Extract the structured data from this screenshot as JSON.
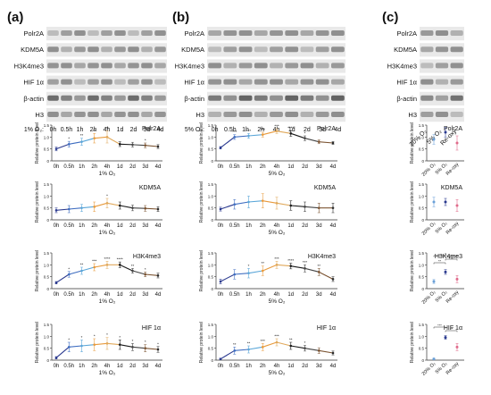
{
  "panels": [
    {
      "letter": "(a)",
      "blot_rows": [
        "Polr2A",
        "KDM5A",
        "H3K4me3",
        "HIF 1α",
        "β-actin",
        "H3"
      ],
      "condition_label": "1% O₂:",
      "lanes": [
        "0h",
        "0.5h",
        "1h",
        "2h",
        "4h",
        "1d",
        "2d",
        "3d",
        "4d"
      ]
    },
    {
      "letter": "(b)",
      "blot_rows": [
        "Polr2A",
        "KDM5A",
        "H3K4me3",
        "HIF 1α",
        "β-actin",
        "H3"
      ],
      "condition_label": "5% O₂:",
      "lanes": [
        "0h",
        "0.5h",
        "1h",
        "2h",
        "4h",
        "1d",
        "2d",
        "3d",
        "4d"
      ]
    },
    {
      "letter": "(c)",
      "blot_rows": [
        "Polr2A",
        "KDM5A",
        "H3K4me3",
        "HIF 1α",
        "β-actin",
        "H3"
      ],
      "condition_label": "",
      "lanes": [
        "20% O₂",
        "5% O₂",
        "Re-oxy"
      ]
    }
  ],
  "chart_data": [
    {
      "type": "line",
      "panel": "a",
      "title": "Polr2A",
      "ylabel": "Relative protein level",
      "xlabel": "1% O₂",
      "ylim": [
        0,
        1.5
      ],
      "yticks": [
        "0",
        "0.5",
        "1.0",
        "1.5"
      ],
      "categories": [
        "0h",
        "0.5h",
        "1h",
        "2h",
        "4h",
        "1d",
        "2d",
        "3d",
        "4d"
      ],
      "values": [
        0.5,
        0.7,
        0.8,
        0.95,
        1.0,
        0.7,
        0.68,
        0.65,
        0.6
      ],
      "errors": [
        0.08,
        0.12,
        0.15,
        0.2,
        0.25,
        0.1,
        0.1,
        0.1,
        0.08
      ],
      "sig": [
        "",
        "*",
        "**",
        "**",
        "**",
        "",
        "",
        "*",
        ""
      ]
    },
    {
      "type": "line",
      "panel": "a",
      "title": "KDM5A",
      "ylabel": "Relative protein level",
      "xlabel": "1% O₂",
      "ylim": [
        0,
        1.5
      ],
      "yticks": [
        "0",
        "0.5",
        "1.0",
        "1.5"
      ],
      "categories": [
        "0h",
        "0.5h",
        "1h",
        "2h",
        "4h",
        "1d",
        "2d",
        "3d",
        "4d"
      ],
      "values": [
        0.4,
        0.45,
        0.5,
        0.55,
        0.7,
        0.6,
        0.5,
        0.48,
        0.45
      ],
      "errors": [
        0.1,
        0.15,
        0.15,
        0.2,
        0.2,
        0.15,
        0.12,
        0.12,
        0.1
      ],
      "sig": [
        "",
        "",
        "",
        "",
        "*",
        "",
        "",
        "",
        ""
      ]
    },
    {
      "type": "line",
      "panel": "a",
      "title": "H3K4me3",
      "ylabel": "Relative protein level",
      "xlabel": "1% O₂",
      "ylim": [
        0,
        1.5
      ],
      "yticks": [
        "0",
        "0.5",
        "1.0",
        "1.5"
      ],
      "categories": [
        "0h",
        "0.5h",
        "1h",
        "2h",
        "4h",
        "1d",
        "2d",
        "3d",
        "4d"
      ],
      "values": [
        0.25,
        0.6,
        0.75,
        0.9,
        1.0,
        1.0,
        0.75,
        0.6,
        0.55
      ],
      "errors": [
        0.05,
        0.12,
        0.15,
        0.15,
        0.15,
        0.12,
        0.1,
        0.1,
        0.1
      ],
      "sig": [
        "",
        "*",
        "**",
        "***",
        "****",
        "****",
        "**",
        "*",
        ""
      ]
    },
    {
      "type": "line",
      "panel": "a",
      "title": "HIF 1α",
      "ylabel": "Relative protein level",
      "xlabel": "1% O₂",
      "ylim": [
        0,
        1.5
      ],
      "yticks": [
        "0",
        "0.5",
        "1.0",
        "1.5"
      ],
      "categories": [
        "0h",
        "0.5h",
        "1h",
        "2h",
        "4h",
        "1d",
        "2d",
        "3d",
        "4d"
      ],
      "values": [
        0.1,
        0.55,
        0.6,
        0.65,
        0.7,
        0.65,
        0.55,
        0.5,
        0.45
      ],
      "errors": [
        0.05,
        0.2,
        0.25,
        0.25,
        0.25,
        0.2,
        0.15,
        0.15,
        0.12
      ],
      "sig": [
        "",
        "*",
        "*",
        "*",
        "*",
        "*",
        "*",
        "*",
        "*"
      ]
    },
    {
      "type": "line",
      "panel": "b",
      "title": "Polr2A",
      "ylabel": "Relative protein level",
      "xlabel": "5% O₂",
      "ylim": [
        0,
        1.5
      ],
      "yticks": [
        "0",
        "0.5",
        "1.0",
        "1.5"
      ],
      "categories": [
        "0h",
        "0.5h",
        "1h",
        "2h",
        "4h",
        "1d",
        "2d",
        "3d",
        "4d"
      ],
      "values": [
        0.55,
        1.0,
        1.05,
        1.1,
        1.25,
        1.15,
        0.95,
        0.8,
        0.75
      ],
      "errors": [
        0.05,
        0.1,
        0.1,
        0.1,
        0.1,
        0.12,
        0.1,
        0.08,
        0.06
      ],
      "sig": [
        "",
        "***",
        "***",
        "***",
        "***",
        "****",
        "*",
        "",
        ""
      ]
    },
    {
      "type": "line",
      "panel": "b",
      "title": "KDM5A",
      "ylabel": "Relative protein level",
      "xlabel": "5% O₂",
      "ylim": [
        0,
        1.5
      ],
      "yticks": [
        "0",
        "0.5",
        "1.0",
        "1.5"
      ],
      "categories": [
        "0h",
        "0.5h",
        "1h",
        "2h",
        "4h",
        "1d",
        "2d",
        "3d",
        "4d"
      ],
      "values": [
        0.45,
        0.65,
        0.75,
        0.8,
        0.7,
        0.6,
        0.55,
        0.5,
        0.5
      ],
      "errors": [
        0.08,
        0.2,
        0.25,
        0.3,
        0.25,
        0.2,
        0.2,
        0.2,
        0.2
      ],
      "sig": [
        "",
        "",
        "",
        "",
        "",
        "",
        "",
        "",
        ""
      ]
    },
    {
      "type": "line",
      "panel": "b",
      "title": "H3K4me3",
      "ylabel": "Relative protein level",
      "xlabel": "5% O₂",
      "ylim": [
        0,
        1.5
      ],
      "yticks": [
        "0",
        "0.5",
        "1.0",
        "1.5"
      ],
      "categories": [
        "0h",
        "0.5h",
        "1h",
        "2h",
        "4h",
        "1d",
        "2d",
        "3d",
        "4d"
      ],
      "values": [
        0.3,
        0.6,
        0.65,
        0.75,
        1.0,
        0.95,
        0.85,
        0.7,
        0.4
      ],
      "errors": [
        0.1,
        0.2,
        0.2,
        0.2,
        0.15,
        0.12,
        0.15,
        0.15,
        0.1
      ],
      "sig": [
        "",
        "",
        "*",
        "**",
        "***",
        "****",
        "***",
        "**",
        ""
      ]
    },
    {
      "type": "line",
      "panel": "b",
      "title": "HIF 1α",
      "ylabel": "Relative protein level",
      "xlabel": "5% O₂",
      "ylim": [
        0,
        1.5
      ],
      "yticks": [
        "0",
        "0.5",
        "1.0",
        "1.5"
      ],
      "categories": [
        "0h",
        "0.5h",
        "1h",
        "2h",
        "4h",
        "1d",
        "2d",
        "3d",
        "4d"
      ],
      "values": [
        0.05,
        0.4,
        0.45,
        0.55,
        0.75,
        0.6,
        0.5,
        0.4,
        0.3
      ],
      "errors": [
        0.03,
        0.15,
        0.15,
        0.15,
        0.15,
        0.15,
        0.12,
        0.12,
        0.08
      ],
      "sig": [
        "",
        "**",
        "**",
        "***",
        "***",
        "**",
        "*",
        "",
        ""
      ]
    },
    {
      "type": "scatter",
      "panel": "c",
      "title": "Polr2A",
      "ylabel": "Relative protein level",
      "ylim": [
        0,
        1.5
      ],
      "yticks": [
        "0",
        "0.5",
        "1.0",
        "1.5"
      ],
      "categories": [
        "20% O₂",
        "5% O₂",
        "Re-oxy"
      ],
      "values": [
        0.9,
        1.2,
        0.75
      ],
      "errors": [
        0.2,
        0.2,
        0.3
      ],
      "brackets": []
    },
    {
      "type": "scatter",
      "panel": "c",
      "title": "KDM5A",
      "ylabel": "Relative protein level",
      "ylim": [
        0,
        1.5
      ],
      "yticks": [
        "0",
        "0.5",
        "1.0",
        "1.5"
      ],
      "categories": [
        "20% O₂",
        "5% O₂",
        "Re-oxy"
      ],
      "values": [
        0.75,
        0.75,
        0.6
      ],
      "errors": [
        0.2,
        0.15,
        0.25
      ],
      "brackets": []
    },
    {
      "type": "scatter",
      "panel": "c",
      "title": "H3K4me3",
      "ylabel": "Relative protein level",
      "ylim": [
        0,
        1.5
      ],
      "yticks": [
        "0",
        "0.5",
        "1.0",
        "1.5"
      ],
      "categories": [
        "20% O₂",
        "5% O₂",
        "Re-oxy"
      ],
      "values": [
        0.3,
        0.7,
        0.4
      ],
      "errors": [
        0.08,
        0.1,
        0.15
      ],
      "brackets": [
        {
          "from": 0,
          "to": 2,
          "label": "*"
        },
        {
          "from": 1,
          "to": 2,
          "label": "ns"
        },
        {
          "from": 0,
          "to": 1,
          "label": "**"
        }
      ]
    },
    {
      "type": "scatter",
      "panel": "c",
      "title": "HIF 1α",
      "ylabel": "Relative protein level",
      "ylim": [
        0,
        1.5
      ],
      "yticks": [
        "0",
        "0.5",
        "1.0",
        "1.5"
      ],
      "categories": [
        "20% O₂",
        "5% O₂",
        "Re-oxy"
      ],
      "values": [
        0.05,
        0.95,
        0.55
      ],
      "errors": [
        0.03,
        0.08,
        0.15
      ],
      "brackets": [
        {
          "from": 0,
          "to": 1,
          "label": "***"
        },
        {
          "from": 1,
          "to": 2,
          "label": "**"
        }
      ]
    }
  ]
}
